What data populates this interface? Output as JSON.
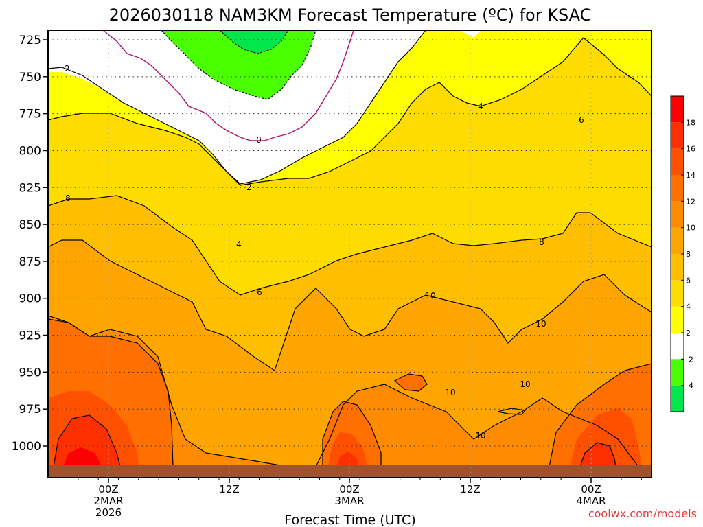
{
  "chart_data": {
    "type": "heatmap",
    "title": "2026030118 NAM3KM Forecast Temperature (ºC) for KSAC",
    "xlabel": "Forecast Time (UTC)",
    "ylabel": "",
    "ylim": [
      1013,
      722
    ],
    "y_ticks": [
      "725",
      "750",
      "775",
      "800",
      "825",
      "850",
      "875",
      "900",
      "925",
      "950",
      "975",
      "1000"
    ],
    "x_ticks": [
      {
        "line1": "00Z",
        "line2": "2MAR",
        "line3": "2026"
      },
      {
        "line1": "12Z",
        "line2": "",
        "line3": ""
      },
      {
        "line1": "00Z",
        "line2": "3MAR",
        "line3": ""
      },
      {
        "line1": "12Z",
        "line2": "",
        "line3": ""
      },
      {
        "line1": "00Z",
        "line2": "4MAR",
        "line3": ""
      }
    ],
    "colorbar": {
      "labels": [
        "18",
        "16",
        "14",
        "12",
        "10",
        "8",
        "6",
        "4",
        "2",
        "-2",
        "-4"
      ],
      "levels": [
        -6,
        -4,
        -2,
        2,
        4,
        6,
        8,
        10,
        12,
        14,
        16,
        18,
        20
      ],
      "colors": [
        "#00e64b",
        "#4aff00",
        "#ffffff",
        "#ffff00",
        "#ffdc00",
        "#ffbe00",
        "#ffa500",
        "#ff8c00",
        "#ff7000",
        "#ff5000",
        "#ff3000",
        "#fa0000"
      ]
    },
    "contour_labels": [
      "2",
      "0",
      "2",
      "4",
      "6",
      "8",
      "10",
      "10",
      "10",
      "10",
      "10",
      "4",
      "6",
      "8"
    ],
    "grid": true,
    "ground_color": "#a0522d"
  },
  "credit": "coolwx.com/models"
}
